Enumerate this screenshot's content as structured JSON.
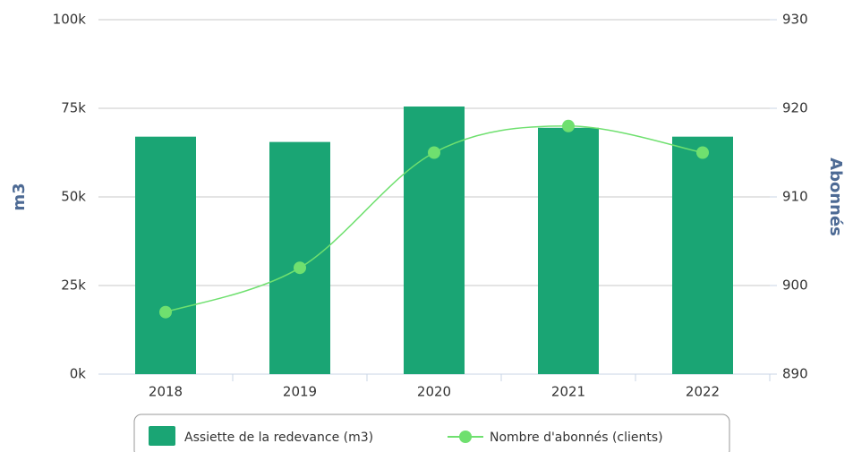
{
  "chart_data": {
    "type": "bar_line",
    "categories": [
      "2018",
      "2019",
      "2020",
      "2021",
      "2022"
    ],
    "ylabel": "m3",
    "y2label": "Abonnés",
    "ylim": [
      0,
      100000
    ],
    "yticks": [
      {
        "value": 0,
        "label": "0k"
      },
      {
        "value": 25000,
        "label": "25k"
      },
      {
        "value": 50000,
        "label": "50k"
      },
      {
        "value": 75000,
        "label": "75k"
      },
      {
        "value": 100000,
        "label": "100k"
      }
    ],
    "y2lim": [
      890,
      930
    ],
    "y2ticks": [
      890,
      900,
      910,
      920,
      930
    ],
    "grid": true,
    "series": [
      {
        "name": "Assiette de la redevance (m3)",
        "type": "bar",
        "color": "#1aa574",
        "values": [
          67000,
          65500,
          75500,
          69500,
          67000
        ]
      },
      {
        "name": "Nombre d'abonnés (clients)",
        "type": "line",
        "axis": "y2",
        "color": "#6fe06f",
        "values": [
          897,
          902,
          915,
          918,
          915
        ]
      }
    ]
  }
}
